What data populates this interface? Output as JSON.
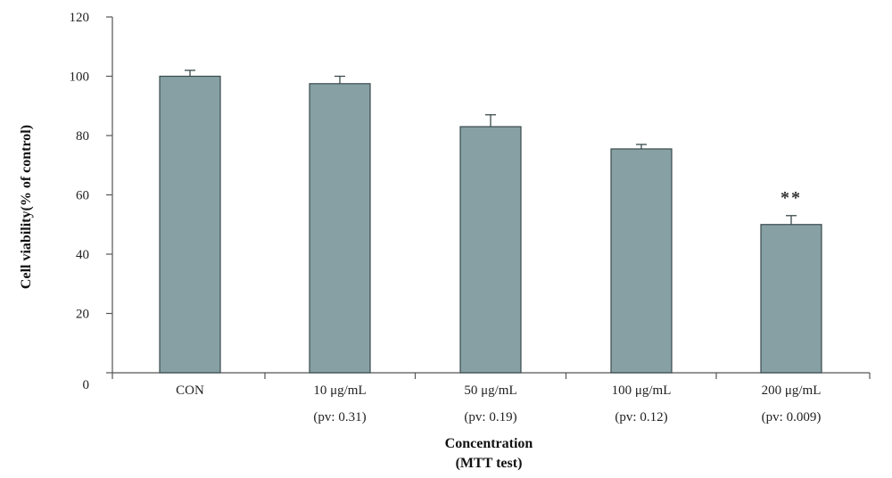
{
  "chart_data": {
    "type": "bar",
    "categories": [
      "CON",
      "10 μg/mL",
      "50 μg/mL",
      "100 μg/mL",
      "200 μg/mL"
    ],
    "category_sublabels": [
      "",
      "(pv: 0.31)",
      "(pv: 0.19)",
      "(pv: 0.12)",
      "(pv: 0.009)"
    ],
    "values": [
      100,
      97.5,
      83,
      75.5,
      50
    ],
    "errors": [
      2,
      2.5,
      4,
      1.5,
      3
    ],
    "annotations": [
      {
        "category": "200 μg/mL",
        "text": "**"
      }
    ],
    "ylabel": "Cell viability(% of control)",
    "xlabel_line1": "Concentration",
    "xlabel_line2": "(MTT test)",
    "ylim": [
      0,
      120
    ],
    "yticks": [
      0,
      20,
      40,
      60,
      80,
      100,
      120
    ],
    "grid": false,
    "colors": {
      "bar_fill": "#86a0a4",
      "bar_stroke": "#3b4a4d",
      "axis": "#555555"
    }
  }
}
